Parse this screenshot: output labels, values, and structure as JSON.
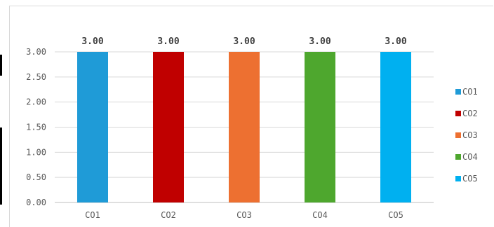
{
  "chart_data": {
    "type": "bar",
    "title": "",
    "xlabel": "",
    "ylabel": "",
    "categories": [
      "CO1",
      "CO2",
      "CO3",
      "CO4",
      "CO5"
    ],
    "values": [
      3.0,
      3.0,
      3.0,
      3.0,
      3.0
    ],
    "data_labels": [
      "3.00",
      "3.00",
      "3.00",
      "3.00",
      "3.00"
    ],
    "colors": [
      "#1f9bd7",
      "#c00000",
      "#ed7031",
      "#4ea72e",
      "#00b0f0"
    ],
    "ylim": [
      0,
      3
    ],
    "yticks": [
      0,
      0.5,
      1,
      1.5,
      2,
      2.5,
      3
    ],
    "ytick_labels": [
      "0.00",
      "0.50",
      "1.00",
      "1.50",
      "2.00",
      "2.50",
      "3.00"
    ],
    "grid": true,
    "legend": {
      "placement": "right",
      "entries": [
        "CO1",
        "CO2",
        "CO3",
        "CO4",
        "CO5"
      ]
    }
  }
}
